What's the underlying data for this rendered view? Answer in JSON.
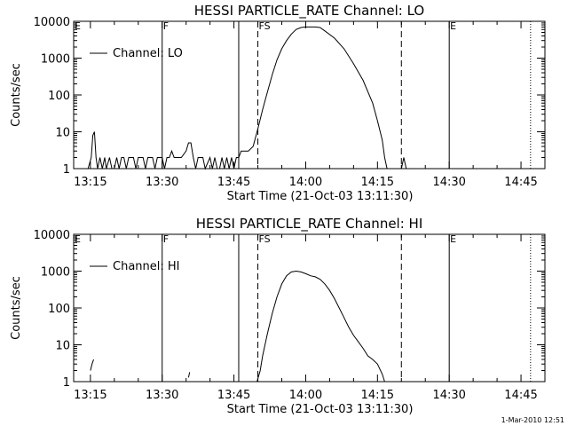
{
  "stamp": "1-Mar-2010 12:51",
  "chart_data": [
    {
      "type": "line",
      "title": "HESSI PARTICLE_RATE Channel: LO",
      "xlabel": "Start Time (21-Oct-03 13:11:30)",
      "ylabel": "Counts/sec",
      "y_scale": "log",
      "ylim": [
        1,
        10000
      ],
      "xlim": [
        "13:11:30",
        "14:50:00"
      ],
      "x_ticks": [
        "13:15",
        "13:30",
        "13:45",
        "14:00",
        "14:15",
        "14:30",
        "14:45"
      ],
      "y_ticks": [
        "1",
        "10",
        "100",
        "1000",
        "10000"
      ],
      "legend": {
        "label": "Channel: LO",
        "position": "top-left"
      },
      "markers": [
        {
          "label": "E",
          "time": "13:11:30",
          "style": "solid"
        },
        {
          "label": "F",
          "time": "13:30:00",
          "style": "solid"
        },
        {
          "label": "",
          "time": "13:46:00",
          "style": "solid"
        },
        {
          "label": "FS",
          "time": "13:50:00",
          "style": "dashed"
        },
        {
          "label": "",
          "time": "14:20:00",
          "style": "dashed"
        },
        {
          "label": "E",
          "time": "14:30:00",
          "style": "solid"
        },
        {
          "label": "",
          "time": "14:47:00",
          "style": "dotted"
        }
      ],
      "series": [
        {
          "segments": [
            [
              [
                "13:14:30",
                1
              ],
              [
                "13:15:10",
                2
              ],
              [
                "13:15:30",
                8
              ],
              [
                "13:15:50",
                10
              ],
              [
                "13:16:10",
                2
              ],
              [
                "13:16:30",
                1
              ],
              [
                "13:17:00",
                2
              ],
              [
                "13:17:30",
                1
              ],
              [
                "13:18:00",
                2
              ],
              [
                "13:18:20",
                1
              ],
              [
                "13:19:00",
                2
              ],
              [
                "13:19:30",
                1
              ],
              [
                "13:20:00",
                1
              ],
              [
                "13:20:30",
                2
              ],
              [
                "13:21:00",
                1
              ],
              [
                "13:21:30",
                2
              ],
              [
                "13:22:00",
                2
              ],
              [
                "13:22:30",
                1
              ],
              [
                "13:23:00",
                2
              ],
              [
                "13:24:00",
                2
              ],
              [
                "13:24:30",
                1
              ],
              [
                "13:25:00",
                2
              ],
              [
                "13:26:00",
                2
              ],
              [
                "13:26:30",
                1
              ],
              [
                "13:27:00",
                2
              ],
              [
                "13:28:00",
                2
              ],
              [
                "13:28:30",
                1
              ],
              [
                "13:29:00",
                2
              ],
              [
                "13:30:00",
                2
              ],
              [
                "13:30:30",
                1
              ],
              [
                "13:31:00",
                2
              ],
              [
                "13:31:30",
                2
              ],
              [
                "13:32:00",
                3
              ],
              [
                "13:32:30",
                2
              ],
              [
                "13:33:30",
                2
              ],
              [
                "13:34:00",
                2
              ],
              [
                "13:35:00",
                3
              ],
              [
                "13:35:30",
                5
              ],
              [
                "13:36:00",
                5
              ],
              [
                "13:36:30",
                2
              ],
              [
                "13:37:00",
                1
              ],
              [
                "13:37:30",
                2
              ],
              [
                "13:38:30",
                2
              ],
              [
                "13:39:00",
                1
              ],
              [
                "13:40:00",
                2
              ],
              [
                "13:40:30",
                1
              ],
              [
                "13:41:00",
                2
              ],
              [
                "13:41:30",
                1
              ],
              [
                "13:42:00",
                1
              ],
              [
                "13:42:30",
                2
              ],
              [
                "13:43:00",
                1
              ],
              [
                "13:43:30",
                2
              ],
              [
                "13:44:00",
                1
              ],
              [
                "13:44:30",
                2
              ],
              [
                "13:45:00",
                1
              ],
              [
                "13:45:30",
                2
              ],
              [
                "13:46:00",
                2
              ],
              [
                "13:46:30",
                3
              ],
              [
                "13:47:00",
                3
              ],
              [
                "13:48:00",
                3
              ],
              [
                "13:49:00",
                4
              ],
              [
                "13:50:00",
                12
              ],
              [
                "13:51:00",
                40
              ],
              [
                "13:52:00",
                120
              ],
              [
                "13:53:00",
                350
              ],
              [
                "13:54:00",
                900
              ],
              [
                "13:55:00",
                1800
              ],
              [
                "13:56:00",
                3000
              ],
              [
                "13:57:00",
                4500
              ],
              [
                "13:58:00",
                6000
              ],
              [
                "13:59:00",
                6800
              ],
              [
                "14:00:00",
                7000
              ],
              [
                "14:02:00",
                7000
              ],
              [
                "14:03:00",
                6800
              ],
              [
                "14:04:00",
                5500
              ],
              [
                "14:06:00",
                3500
              ],
              [
                "14:08:00",
                1800
              ],
              [
                "14:10:00",
                700
              ],
              [
                "14:12:00",
                250
              ],
              [
                "14:14:00",
                60
              ],
              [
                "14:15:00",
                20
              ],
              [
                "14:16:00",
                6
              ],
              [
                "14:16:30",
                2
              ],
              [
                "14:17:00",
                1
              ]
            ],
            [
              [
                "14:20:00",
                1
              ],
              [
                "14:20:30",
                2
              ],
              [
                "14:21:00",
                1
              ]
            ]
          ]
        }
      ]
    },
    {
      "type": "line",
      "title": "HESSI PARTICLE_RATE Channel: HI",
      "xlabel": "Start Time (21-Oct-03 13:11:30)",
      "ylabel": "Counts/sec",
      "y_scale": "log",
      "ylim": [
        1,
        10000
      ],
      "xlim": [
        "13:11:30",
        "14:50:00"
      ],
      "x_ticks": [
        "13:15",
        "13:30",
        "13:45",
        "14:00",
        "14:15",
        "14:30",
        "14:45"
      ],
      "y_ticks": [
        "1",
        "10",
        "100",
        "1000",
        "10000"
      ],
      "legend": {
        "label": "Channel: HI",
        "position": "top-left"
      },
      "markers": [
        {
          "label": "E",
          "time": "13:11:30",
          "style": "solid"
        },
        {
          "label": "F",
          "time": "13:30:00",
          "style": "solid"
        },
        {
          "label": "",
          "time": "13:46:00",
          "style": "solid"
        },
        {
          "label": "FS",
          "time": "13:50:00",
          "style": "dashed"
        },
        {
          "label": "",
          "time": "14:20:00",
          "style": "dashed"
        },
        {
          "label": "E",
          "time": "14:30:00",
          "style": "solid"
        },
        {
          "label": "",
          "time": "14:47:00",
          "style": "dotted"
        }
      ],
      "series": [
        {
          "segments": [
            [
              [
                "13:15:00",
                2
              ],
              [
                "13:15:20",
                3
              ],
              [
                "13:15:40",
                4
              ]
            ],
            [
              [
                "13:35:30",
                1.3
              ],
              [
                "13:35:45",
                1.8
              ]
            ],
            [
              [
                "13:49:50",
                1
              ],
              [
                "13:50:30",
                2
              ],
              [
                "13:51:00",
                5
              ],
              [
                "13:52:00",
                20
              ],
              [
                "13:53:00",
                70
              ],
              [
                "13:54:00",
                200
              ],
              [
                "13:55:00",
                450
              ],
              [
                "13:56:00",
                750
              ],
              [
                "13:57:00",
                950
              ],
              [
                "13:58:00",
                1000
              ],
              [
                "13:59:00",
                950
              ],
              [
                "14:00:00",
                850
              ],
              [
                "14:01:00",
                750
              ],
              [
                "14:02:00",
                700
              ],
              [
                "14:03:00",
                600
              ],
              [
                "14:04:00",
                450
              ],
              [
                "14:05:00",
                300
              ],
              [
                "14:06:00",
                180
              ],
              [
                "14:07:00",
                100
              ],
              [
                "14:08:00",
                55
              ],
              [
                "14:09:00",
                30
              ],
              [
                "14:10:00",
                18
              ],
              [
                "14:11:00",
                12
              ],
              [
                "14:12:00",
                8
              ],
              [
                "14:13:00",
                5
              ],
              [
                "14:14:00",
                4
              ],
              [
                "14:15:00",
                3
              ],
              [
                "14:16:00",
                1.6
              ],
              [
                "14:16:30",
                1
              ]
            ]
          ]
        }
      ]
    }
  ]
}
